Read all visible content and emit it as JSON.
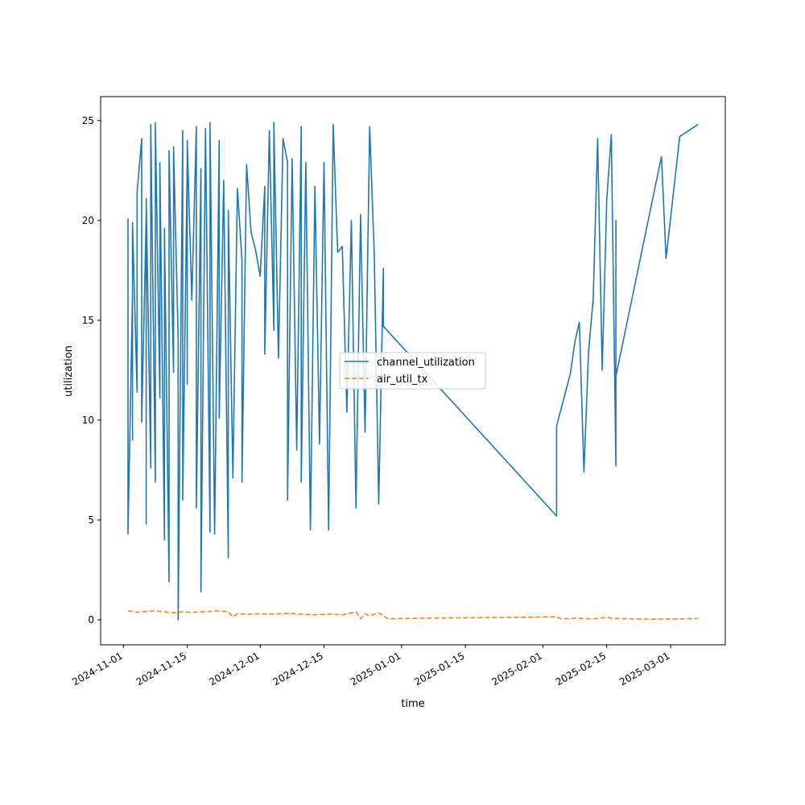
{
  "chart_data": {
    "type": "line",
    "title": "",
    "xlabel": "time",
    "ylabel": "utilization",
    "x_type": "date",
    "xlim": [
      "2024-10-27",
      "2025-03-13"
    ],
    "ylim": [
      -1.25,
      26.2
    ],
    "x_ticks": [
      "2024-11-01",
      "2024-11-15",
      "2024-12-01",
      "2024-12-15",
      "2025-01-01",
      "2025-01-15",
      "2025-02-01",
      "2025-02-15",
      "2025-03-01"
    ],
    "x_tick_labels": [
      "2024-11-01",
      "2024-11-15",
      "2024-12-01",
      "2024-12-15",
      "2025-01-01",
      "2025-01-15",
      "2025-02-01",
      "2025-02-15",
      "2025-03-01"
    ],
    "y_ticks": [
      0,
      5,
      10,
      15,
      20,
      25
    ],
    "y_tick_labels": [
      "0",
      "5",
      "10",
      "15",
      "20",
      "25"
    ],
    "grid": false,
    "legend_position": "center",
    "colors": {
      "channel_utilization": "#1f77b4",
      "air_util_tx": "#ff7f0e"
    },
    "series": [
      {
        "name": "channel_utilization",
        "style": "solid",
        "x": [
          "2024-11-02",
          "2024-11-02",
          "2024-11-03",
          "2024-11-03",
          "2024-11-03",
          "2024-11-04",
          "2024-11-04",
          "2024-11-05",
          "2024-11-05",
          "2024-11-06",
          "2024-11-06",
          "2024-11-06",
          "2024-11-07",
          "2024-11-07",
          "2024-11-08",
          "2024-11-08",
          "2024-11-09",
          "2024-11-09",
          "2024-11-10",
          "2024-11-10",
          "2024-11-11",
          "2024-11-11",
          "2024-11-12",
          "2024-11-12",
          "2024-11-13",
          "2024-11-13",
          "2024-11-14",
          "2024-11-14",
          "2024-11-15",
          "2024-11-15",
          "2024-11-15",
          "2024-11-16",
          "2024-11-17",
          "2024-11-17",
          "2024-11-18",
          "2024-11-18",
          "2024-11-19",
          "2024-11-20",
          "2024-11-20",
          "2024-11-21",
          "2024-11-22",
          "2024-11-22",
          "2024-11-23",
          "2024-11-24",
          "2024-11-24",
          "2024-11-25",
          "2024-11-26",
          "2024-11-27",
          "2024-11-27",
          "2024-11-28",
          "2024-11-29",
          "2024-11-30",
          "2024-12-01",
          "2024-12-02",
          "2024-12-02",
          "2024-12-03",
          "2024-12-04",
          "2024-12-04",
          "2024-12-05",
          "2024-12-06",
          "2024-12-07",
          "2024-12-07",
          "2024-12-08",
          "2024-12-09",
          "2024-12-10",
          "2024-12-10",
          "2024-12-11",
          "2024-12-12",
          "2024-12-13",
          "2024-12-14",
          "2024-12-15",
          "2024-12-16",
          "2024-12-17",
          "2024-12-18",
          "2024-12-19",
          "2024-12-20",
          "2024-12-21",
          "2024-12-22",
          "2024-12-23",
          "2024-12-24",
          "2024-12-25",
          "2024-12-26",
          "2024-12-27",
          "2024-12-28",
          "2024-12-28",
          "2025-02-04",
          "2025-02-04",
          "2025-02-07",
          "2025-02-08",
          "2025-02-09",
          "2025-02-10",
          "2025-02-11",
          "2025-02-12",
          "2025-02-12",
          "2025-02-13",
          "2025-02-14",
          "2025-02-15",
          "2025-02-16",
          "2025-02-17",
          "2025-02-17",
          "2025-02-17",
          "2025-02-27",
          "2025-02-28",
          "2025-03-03",
          "2025-03-07"
        ],
        "y": [
          20.1,
          4.3,
          16.3,
          9.0,
          19.9,
          11.4,
          21.4,
          24.1,
          9.9,
          20.1,
          4.8,
          21.1,
          7.6,
          24.8,
          6.9,
          24.9,
          11.1,
          22.9,
          4.0,
          19.6,
          1.9,
          23.5,
          12.4,
          23.7,
          14.1,
          0.0,
          24.5,
          6.0,
          23.0,
          11.8,
          24.0,
          16.0,
          24.7,
          5.6,
          22.6,
          1.4,
          24.6,
          4.4,
          24.9,
          4.3,
          24.0,
          10.1,
          22.0,
          3.1,
          20.5,
          7.1,
          21.6,
          18.0,
          6.9,
          22.8,
          19.4,
          18.5,
          17.2,
          21.7,
          13.3,
          24.5,
          14.5,
          24.9,
          13.1,
          24.1,
          22.9,
          6.0,
          23.1,
          8.5,
          24.7,
          6.9,
          22.9,
          4.5,
          21.7,
          8.8,
          22.9,
          4.5,
          24.8,
          18.4,
          18.7,
          10.4,
          20.0,
          5.6,
          20.3,
          9.4,
          24.7,
          18.3,
          5.8,
          17.6,
          14.7,
          5.2,
          9.7,
          12.3,
          13.9,
          14.9,
          7.4,
          13.4,
          16.0,
          15.8,
          24.1,
          12.5,
          21.0,
          24.3,
          7.7,
          20.0,
          12.2,
          23.2,
          18.1,
          24.2,
          24.8
        ]
      },
      {
        "name": "air_util_tx",
        "style": "dashed",
        "x": [
          "2024-11-02",
          "2024-11-04",
          "2024-11-06",
          "2024-11-08",
          "2024-11-10",
          "2024-11-12",
          "2024-11-14",
          "2024-11-16",
          "2024-11-18",
          "2024-11-20",
          "2024-11-22",
          "2024-11-24",
          "2024-11-25",
          "2024-11-26",
          "2024-11-28",
          "2024-12-01",
          "2024-12-04",
          "2024-12-07",
          "2024-12-10",
          "2024-12-13",
          "2024-12-16",
          "2024-12-19",
          "2024-12-22",
          "2024-12-23",
          "2024-12-24",
          "2024-12-25",
          "2024-12-27",
          "2024-12-29",
          "2025-01-05",
          "2025-01-15",
          "2025-01-25",
          "2025-02-04",
          "2025-02-05",
          "2025-02-08",
          "2025-02-12",
          "2025-02-15",
          "2025-02-16",
          "2025-02-20",
          "2025-02-25",
          "2025-03-01",
          "2025-03-07"
        ],
        "y": [
          0.45,
          0.38,
          0.42,
          0.45,
          0.4,
          0.35,
          0.4,
          0.38,
          0.4,
          0.42,
          0.45,
          0.4,
          0.15,
          0.3,
          0.28,
          0.3,
          0.28,
          0.32,
          0.28,
          0.25,
          0.28,
          0.25,
          0.4,
          0.05,
          0.3,
          0.2,
          0.35,
          0.05,
          0.08,
          0.1,
          0.12,
          0.15,
          0.05,
          0.08,
          0.05,
          0.12,
          0.08,
          0.05,
          0.03,
          0.04,
          0.07
        ]
      }
    ]
  }
}
